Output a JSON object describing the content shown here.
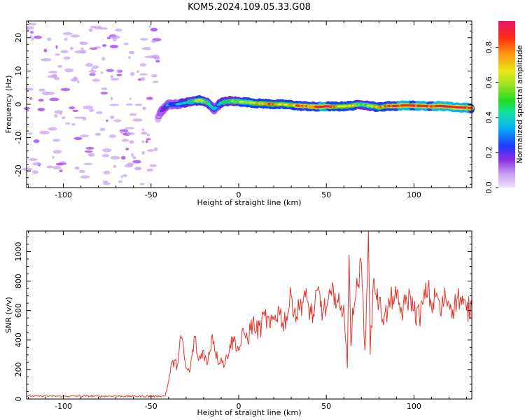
{
  "title": "KOM5.2024.109.05.33.G08",
  "colors": {
    "snr_line": "#e8332a",
    "noise_scatter": "#c8a3f0",
    "colormap": [
      "#d8b4fe",
      "#a855f7",
      "#6d28d9",
      "#1e3aff",
      "#06b6f2",
      "#10e0a0",
      "#22dd22",
      "#a0e020",
      "#e8e81a",
      "#ff9a10",
      "#ff2a10",
      "#e8146a"
    ]
  },
  "chart_data": [
    {
      "type": "heatmap",
      "xlabel": "Height of straight line (km)",
      "ylabel": "Frequency (Hz)",
      "xlim": [
        -121,
        133
      ],
      "ylim": [
        -25,
        25
      ],
      "xticks": [
        -100,
        -50,
        0,
        50,
        100
      ],
      "yticks": [
        -20,
        -10,
        0,
        10,
        20
      ],
      "xtick_labels": [
        "-100",
        "-50",
        "0",
        "50",
        "100"
      ],
      "ytick_labels": [
        "-20",
        "-10",
        "0",
        "10",
        "20"
      ],
      "colorbar": {
        "label": "Normalized spectral amplitude",
        "range": [
          0.0,
          0.95
        ],
        "ticks": [
          0.0,
          0.2,
          0.4,
          0.6,
          0.8
        ],
        "tick_labels": [
          "0.0",
          "0.2",
          "0.4",
          "0.6",
          "0.8"
        ]
      },
      "signal_trace": {
        "description_x": [
          -46,
          -44,
          -40,
          -35,
          -30,
          -25,
          -22,
          -18,
          -14,
          -10,
          -5,
          0,
          5,
          10,
          15,
          20,
          25,
          30,
          35,
          40,
          45,
          50,
          55,
          60,
          65,
          70,
          75,
          80,
          85,
          90,
          95,
          100,
          105,
          110,
          115,
          120,
          125,
          130,
          133
        ],
        "frequency": [
          -4,
          -2,
          0,
          0,
          0.5,
          1.0,
          1.2,
          0.5,
          -1.5,
          0.5,
          1.0,
          0.8,
          0.6,
          0.3,
          0.2,
          0.0,
          0.0,
          -0.2,
          -0.5,
          -0.6,
          -0.8,
          -0.6,
          -0.7,
          -0.6,
          -0.4,
          0.0,
          -0.5,
          -0.9,
          -0.5,
          -0.5,
          -0.3,
          -0.4,
          -0.5,
          -0.6,
          -0.5,
          -0.7,
          -0.9,
          -1.0,
          -1.2
        ],
        "amplitude": [
          0.05,
          0.15,
          0.3,
          0.35,
          0.4,
          0.5,
          0.7,
          0.5,
          0.3,
          0.4,
          0.55,
          0.6,
          0.65,
          0.7,
          0.75,
          0.8,
          0.7,
          0.75,
          0.85,
          0.8,
          0.85,
          0.9,
          0.75,
          0.7,
          0.75,
          0.5,
          0.6,
          0.8,
          0.8,
          0.85,
          0.9,
          0.85,
          0.9,
          0.85,
          0.9,
          0.9,
          0.95,
          0.9,
          0.85
        ]
      },
      "noise_region_x": [
        -121,
        -46
      ]
    },
    {
      "type": "line",
      "xlabel": "Height of straight line (km)",
      "ylabel": "SNR (v/v)",
      "xlim": [
        -121,
        133
      ],
      "ylim": [
        0,
        1140
      ],
      "xticks": [
        -100,
        -50,
        0,
        50,
        100
      ],
      "yticks": [
        0,
        200,
        400,
        600,
        800,
        1000
      ],
      "xtick_labels": [
        "-100",
        "-50",
        "0",
        "50",
        "100"
      ],
      "ytick_labels": [
        "0",
        "200",
        "400",
        "600",
        "800",
        "1000"
      ],
      "series": [
        {
          "x": [
            -121,
            -110,
            -100,
            -90,
            -80,
            -70,
            -60,
            -50,
            -45,
            -42,
            -40,
            -38,
            -35,
            -33,
            -30,
            -28,
            -25,
            -23,
            -20,
            -18,
            -15,
            -12,
            -10,
            -8,
            -5,
            -2,
            0,
            3,
            5,
            8,
            10,
            13,
            15,
            18,
            20,
            23,
            25,
            28,
            30,
            33,
            35,
            38,
            40,
            43,
            45,
            48,
            50,
            53,
            55,
            58,
            60,
            62,
            63,
            64,
            65,
            67,
            70,
            72,
            73,
            74,
            75,
            77,
            80,
            83,
            85,
            88,
            90,
            93,
            95,
            98,
            100,
            103,
            105,
            108,
            110,
            113,
            115,
            118,
            120,
            123,
            125,
            128,
            130,
            133
          ],
          "y": [
            20,
            20,
            18,
            20,
            19,
            20,
            18,
            18,
            20,
            20,
            120,
            250,
            230,
            430,
            210,
            180,
            420,
            260,
            330,
            230,
            440,
            260,
            280,
            230,
            370,
            400,
            330,
            450,
            410,
            520,
            460,
            500,
            560,
            480,
            540,
            610,
            520,
            580,
            700,
            560,
            640,
            690,
            620,
            560,
            740,
            590,
            620,
            700,
            720,
            600,
            640,
            210,
            980,
            360,
            620,
            710,
            920,
            330,
            700,
            1140,
            300,
            820,
            640,
            560,
            600,
            700,
            680,
            590,
            640,
            700,
            600,
            560,
            640,
            760,
            620,
            720,
            580,
            700,
            650,
            620,
            700,
            640,
            600,
            620
          ]
        }
      ]
    }
  ]
}
